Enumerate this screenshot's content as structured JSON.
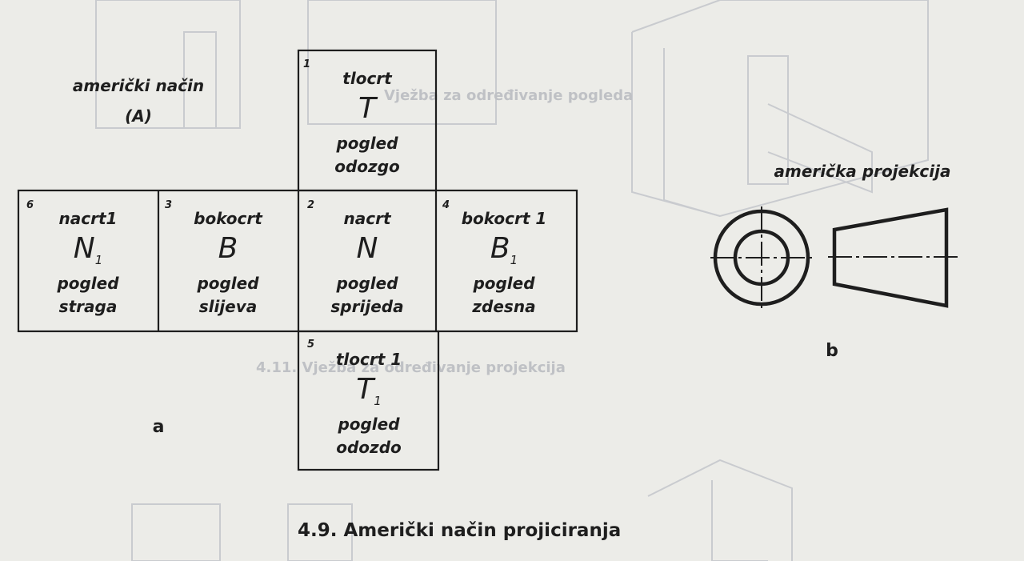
{
  "left_label": {
    "line1": "američki način",
    "line2": "(A)"
  },
  "panel_a_marker": "a",
  "panel_b_marker": "b",
  "panel_b_title": "američka projekcija",
  "caption": "4.9. Američki način projiciranja",
  "views": [
    {
      "num": "1",
      "name": "tlocrt",
      "letter": "T",
      "sub": "",
      "line1": "pogled",
      "line2": "odozgo"
    },
    {
      "num": "2",
      "name": "nacrt",
      "letter": "N",
      "sub": "",
      "line1": "pogled",
      "line2": "sprijeda"
    },
    {
      "num": "3",
      "name": "bokocrt",
      "letter": "B",
      "sub": "",
      "line1": "pogled",
      "line2": "slijeva"
    },
    {
      "num": "4",
      "name": "bokocrt 1",
      "letter": "B",
      "sub": "1",
      "line1": "pogled",
      "line2": "zdesna"
    },
    {
      "num": "5",
      "name": "tlocrt 1",
      "letter": "T",
      "sub": "1",
      "line1": "pogled",
      "line2": "odozdo"
    },
    {
      "num": "6",
      "name": "nacrt1",
      "letter": "N",
      "sub": "1",
      "line1": "pogled",
      "line2": "straga"
    }
  ]
}
